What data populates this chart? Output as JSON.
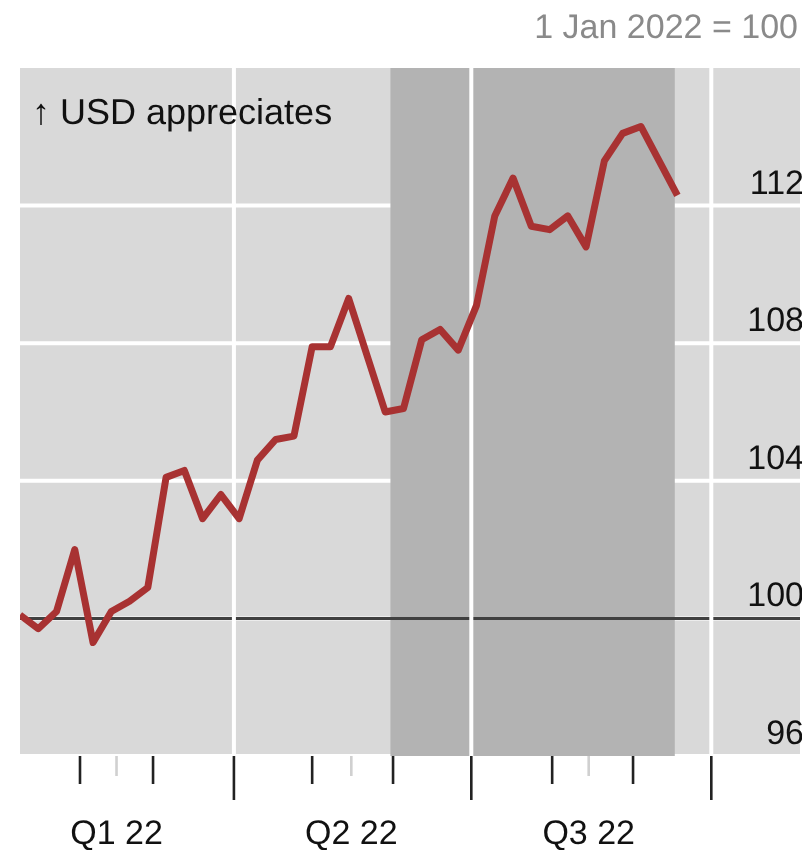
{
  "chart_data": {
    "type": "line",
    "subtitle": "1 Jan 2022 = 100",
    "annotations": [
      "↑ USD appreciates"
    ],
    "x": [
      "2022-01-09",
      "2022-01-16",
      "2022-01-23",
      "2022-01-30",
      "2022-02-06",
      "2022-02-13",
      "2022-02-20",
      "2022-02-27",
      "2022-03-06",
      "2022-03-13",
      "2022-03-20",
      "2022-03-27",
      "2022-04-03",
      "2022-04-10",
      "2022-04-17",
      "2022-04-24",
      "2022-05-01",
      "2022-05-08",
      "2022-05-15",
      "2022-05-29",
      "2022-06-05",
      "2022-06-12",
      "2022-06-19",
      "2022-06-26",
      "2022-07-03",
      "2022-07-10",
      "2022-07-17",
      "2022-07-24",
      "2022-07-31",
      "2022-08-07",
      "2022-08-14",
      "2022-08-21",
      "2022-08-28",
      "2022-09-04",
      "2022-09-11",
      "2022-09-18"
    ],
    "series": [
      {
        "color": "#a83232",
        "values": [
          100.1,
          99.7,
          100.2,
          102.0,
          99.3,
          100.2,
          100.5,
          100.9,
          104.1,
          104.3,
          102.9,
          103.6,
          102.9,
          104.6,
          105.2,
          105.3,
          107.9,
          107.9,
          109.3,
          106.0,
          106.1,
          108.1,
          108.4,
          107.8,
          109.1,
          111.7,
          112.8,
          111.4,
          111.3,
          111.7,
          110.8,
          113.3,
          114.1,
          114.3,
          113.3,
          112.3
        ]
      }
    ],
    "xlim": [
      "2022-01-09",
      "2022-11-04"
    ],
    "xticks": [
      {
        "value": "2022-02-01",
        "label": null
      },
      {
        "value": "2022-02-15",
        "label": "Q1 22"
      },
      {
        "value": "2022-03-01",
        "label": null
      },
      {
        "value": "2022-04-01",
        "label": null
      },
      {
        "value": "2022-05-01",
        "label": null
      },
      {
        "value": "2022-05-16",
        "label": "Q2 22"
      },
      {
        "value": "2022-06-01",
        "label": null
      },
      {
        "value": "2022-07-01",
        "label": null
      },
      {
        "value": "2022-08-01",
        "label": null
      },
      {
        "value": "2022-08-15",
        "label": "Q3 22"
      },
      {
        "value": "2022-09-01",
        "label": null
      },
      {
        "value": "2022-10-01",
        "label": null
      }
    ],
    "ylim": [
      96,
      116
    ],
    "yticks": [
      96,
      100,
      104,
      108,
      112
    ],
    "grid": "y",
    "legend": false,
    "marker": "none",
    "line_style": "solid",
    "bands": [
      {
        "axis": "x",
        "from": "2022-05-31",
        "to": "2022-09-17",
        "color": "#b3b3b3"
      }
    ],
    "ref_lines": [
      {
        "axis": "y",
        "value": 100,
        "color": "#404040"
      },
      {
        "axis": "x",
        "value": "2022-04-01",
        "color": "#ffffff"
      },
      {
        "axis": "x",
        "value": "2022-07-01",
        "color": "#ffffff"
      },
      {
        "axis": "x",
        "value": "2022-10-01",
        "color": "#ffffff"
      }
    ]
  }
}
